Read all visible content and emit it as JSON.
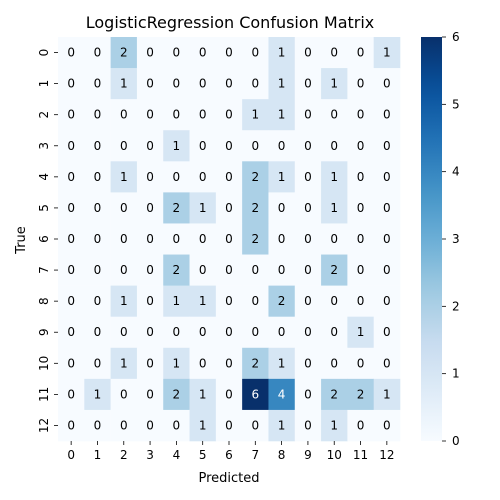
{
  "chart_data": {
    "type": "heatmap",
    "title": "LogisticRegression Confusion Matrix",
    "xlabel": "Predicted",
    "ylabel": "True",
    "x_categories": [
      "0",
      "1",
      "2",
      "3",
      "4",
      "5",
      "6",
      "7",
      "8",
      "9",
      "10",
      "11",
      "12"
    ],
    "y_categories": [
      "0",
      "1",
      "2",
      "3",
      "4",
      "5",
      "6",
      "7",
      "8",
      "9",
      "10",
      "11",
      "12"
    ],
    "values": [
      [
        0,
        0,
        2,
        0,
        0,
        0,
        0,
        0,
        1,
        0,
        0,
        0,
        1
      ],
      [
        0,
        0,
        1,
        0,
        0,
        0,
        0,
        0,
        1,
        0,
        1,
        0,
        0
      ],
      [
        0,
        0,
        0,
        0,
        0,
        0,
        0,
        1,
        1,
        0,
        0,
        0,
        0
      ],
      [
        0,
        0,
        0,
        0,
        1,
        0,
        0,
        0,
        0,
        0,
        0,
        0,
        0
      ],
      [
        0,
        0,
        1,
        0,
        0,
        0,
        0,
        2,
        1,
        0,
        1,
        0,
        0
      ],
      [
        0,
        0,
        0,
        0,
        2,
        1,
        0,
        2,
        0,
        0,
        1,
        0,
        0
      ],
      [
        0,
        0,
        0,
        0,
        0,
        0,
        0,
        2,
        0,
        0,
        0,
        0,
        0
      ],
      [
        0,
        0,
        0,
        0,
        2,
        0,
        0,
        0,
        0,
        0,
        2,
        0,
        0
      ],
      [
        0,
        0,
        1,
        0,
        1,
        1,
        0,
        0,
        2,
        0,
        0,
        0,
        0
      ],
      [
        0,
        0,
        0,
        0,
        0,
        0,
        0,
        0,
        0,
        0,
        0,
        1,
        0
      ],
      [
        0,
        0,
        1,
        0,
        1,
        0,
        0,
        2,
        1,
        0,
        0,
        0,
        0
      ],
      [
        0,
        1,
        0,
        0,
        2,
        1,
        0,
        6,
        4,
        0,
        2,
        2,
        1
      ],
      [
        0,
        0,
        0,
        0,
        0,
        1,
        0,
        0,
        1,
        0,
        1,
        0,
        0
      ]
    ],
    "colorbar": {
      "min": 0,
      "max": 6,
      "ticks": [
        "0",
        "1",
        "2",
        "3",
        "4",
        "5",
        "6"
      ]
    },
    "colormap": "Blues",
    "annotations": true
  }
}
